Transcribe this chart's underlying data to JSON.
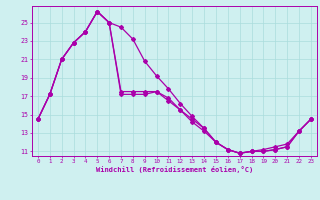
{
  "xlabel": "Windchill (Refroidissement éolien,°C)",
  "background_color": "#cff0f0",
  "grid_color": "#aadddd",
  "line_color": "#aa00aa",
  "x_values": [
    0,
    1,
    2,
    3,
    4,
    5,
    6,
    7,
    8,
    9,
    10,
    11,
    12,
    13,
    14,
    15,
    16,
    17,
    18,
    19,
    20,
    21,
    22,
    23
  ],
  "line1_y": [
    14.5,
    17.2,
    21.0,
    22.8,
    24.0,
    26.2,
    25.0,
    17.2,
    17.2,
    17.2,
    17.5,
    16.8,
    15.5,
    14.5,
    13.5,
    12.0,
    11.2,
    10.8,
    11.0,
    11.0,
    11.2,
    11.5,
    13.2,
    14.5
  ],
  "line2_y": [
    14.5,
    17.2,
    21.0,
    22.8,
    24.0,
    26.2,
    25.0,
    24.5,
    23.2,
    20.8,
    19.2,
    17.8,
    16.2,
    14.8,
    13.5,
    12.0,
    11.2,
    10.8,
    11.0,
    11.0,
    11.2,
    11.5,
    13.2,
    14.5
  ],
  "line3_x": [
    0,
    1,
    2,
    3,
    4,
    5,
    6,
    7,
    8,
    9,
    10,
    11,
    12,
    13,
    14,
    15,
    16,
    17,
    18,
    19,
    20,
    21,
    22,
    23
  ],
  "line3_y": [
    14.5,
    17.2,
    21.0,
    22.8,
    24.0,
    26.2,
    25.0,
    17.5,
    17.5,
    17.5,
    17.5,
    16.5,
    15.5,
    14.2,
    13.2,
    12.0,
    11.2,
    10.8,
    11.0,
    11.2,
    11.5,
    11.8,
    13.2,
    14.5
  ],
  "ylim_min": 10.5,
  "ylim_max": 26.8,
  "xlim_min": -0.5,
  "xlim_max": 23.5,
  "yticks": [
    11,
    13,
    15,
    17,
    19,
    21,
    23,
    25
  ],
  "xticks": [
    0,
    1,
    2,
    3,
    4,
    5,
    6,
    7,
    8,
    9,
    10,
    11,
    12,
    13,
    14,
    15,
    16,
    17,
    18,
    19,
    20,
    21,
    22,
    23
  ],
  "figwidth": 3.2,
  "figheight": 2.0,
  "dpi": 100
}
